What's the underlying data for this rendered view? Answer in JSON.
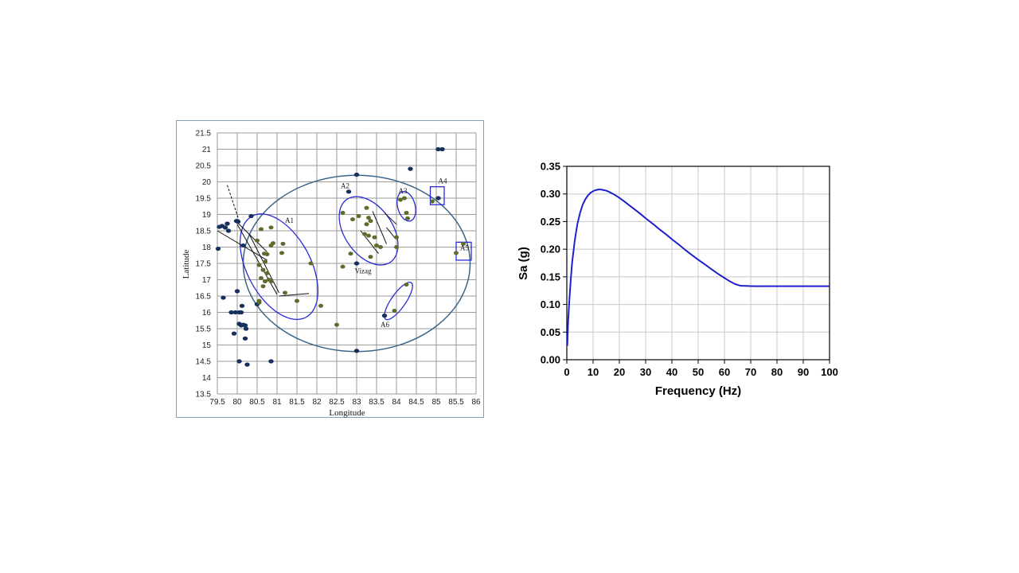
{
  "chart_data": [
    {
      "type": "scatter",
      "xlabel": "Longitude",
      "ylabel": "Latitude",
      "xlim": [
        79.5,
        86
      ],
      "ylim": [
        13.5,
        21.5
      ],
      "x_ticks": [
        "79.5",
        "80",
        "80.5",
        "81",
        "81.5",
        "82",
        "82.5",
        "83",
        "83.5",
        "84",
        "84.5",
        "85",
        "85.5",
        "86"
      ],
      "y_ticks": [
        "13.5",
        "14",
        "14.5",
        "15",
        "15.5",
        "16",
        "16.5",
        "17",
        "17.5",
        "18",
        "18.5",
        "19",
        "19.5",
        "20",
        "20.5",
        "21",
        "21.5"
      ],
      "grid": true,
      "colors": {
        "series_a": "#17305c",
        "series_b": "#5e6b2c",
        "ellipse": "#2a2ad6",
        "big_circle": "#3c6689"
      },
      "series": [
        {
          "points": [
            [
              79.52,
              17.95
            ],
            [
              79.55,
              18.62
            ],
            [
              79.62,
              18.65
            ],
            [
              79.7,
              18.6
            ],
            [
              79.75,
              18.72
            ],
            [
              79.78,
              18.5
            ],
            [
              79.98,
              18.8
            ],
            [
              80.02,
              18.78
            ],
            [
              80.35,
              18.95
            ],
            [
              80.15,
              18.05
            ],
            [
              79.85,
              16.0
            ],
            [
              79.65,
              16.45
            ],
            [
              79.95,
              16.0
            ],
            [
              80.0,
              16.65
            ],
            [
              80.05,
              16.0
            ],
            [
              80.1,
              16.0
            ],
            [
              80.12,
              16.2
            ],
            [
              80.05,
              15.65
            ],
            [
              80.1,
              15.6
            ],
            [
              80.15,
              15.62
            ],
            [
              80.2,
              15.6
            ],
            [
              80.22,
              15.5
            ],
            [
              79.92,
              15.35
            ],
            [
              80.2,
              15.2
            ],
            [
              80.05,
              14.5
            ],
            [
              80.25,
              14.4
            ],
            [
              80.85,
              14.5
            ],
            [
              80.5,
              16.25
            ],
            [
              84.35,
              20.4
            ],
            [
              85.05,
              21.0
            ],
            [
              85.15,
              21.0
            ],
            [
              85.05,
              19.5
            ],
            [
              83.0,
              20.22
            ],
            [
              83.0,
              14.82
            ],
            [
              83.0,
              17.5
            ],
            [
              82.8,
              19.7
            ],
            [
              83.7,
              15.9
            ]
          ]
        },
        {
          "points": [
            [
              80.55,
              16.35
            ],
            [
              80.65,
              16.8
            ],
            [
              80.7,
              16.95
            ],
            [
              80.75,
              17.2
            ],
            [
              80.8,
              17.0
            ],
            [
              80.85,
              16.95
            ],
            [
              80.6,
              17.05
            ],
            [
              80.65,
              17.3
            ],
            [
              80.55,
              17.45
            ],
            [
              80.7,
              17.55
            ],
            [
              80.68,
              17.8
            ],
            [
              80.75,
              17.78
            ],
            [
              80.85,
              18.05
            ],
            [
              80.9,
              18.12
            ],
            [
              81.15,
              18.1
            ],
            [
              81.12,
              17.82
            ],
            [
              81.2,
              16.6
            ],
            [
              81.5,
              16.35
            ],
            [
              80.85,
              18.6
            ],
            [
              80.6,
              18.55
            ],
            [
              80.5,
              18.2
            ],
            [
              81.85,
              17.5
            ],
            [
              82.1,
              16.2
            ],
            [
              82.5,
              15.62
            ],
            [
              82.65,
              17.4
            ],
            [
              82.65,
              19.05
            ],
            [
              82.9,
              18.85
            ],
            [
              83.05,
              18.95
            ],
            [
              82.85,
              17.8
            ],
            [
              83.25,
              19.2
            ],
            [
              83.3,
              18.9
            ],
            [
              83.25,
              18.7
            ],
            [
              83.35,
              18.8
            ],
            [
              83.2,
              18.4
            ],
            [
              83.3,
              18.35
            ],
            [
              83.45,
              18.3
            ],
            [
              83.5,
              18.05
            ],
            [
              83.6,
              18.0
            ],
            [
              83.35,
              17.7
            ],
            [
              84.0,
              18.3
            ],
            [
              84.0,
              18.0
            ],
            [
              84.1,
              19.45
            ],
            [
              84.2,
              19.5
            ],
            [
              84.25,
              19.05
            ],
            [
              84.28,
              18.88
            ],
            [
              84.25,
              16.85
            ],
            [
              83.95,
              16.05
            ],
            [
              84.9,
              19.4
            ],
            [
              85.5,
              17.82
            ],
            [
              85.68,
              18.1
            ],
            [
              80.55,
              16.3
            ]
          ]
        }
      ],
      "annotations": [
        "A1",
        "A2",
        "A3",
        "A4",
        "A5",
        "A6",
        "Vizag"
      ]
    },
    {
      "type": "line",
      "xlabel": "Frequency (Hz)",
      "ylabel": "Sa (g)",
      "xlim": [
        0,
        100
      ],
      "ylim": [
        0,
        0.35
      ],
      "x_ticks": [
        "0",
        "10",
        "20",
        "30",
        "40",
        "50",
        "60",
        "70",
        "80",
        "90",
        "100"
      ],
      "y_ticks": [
        "0.00",
        "0.05",
        "0.10",
        "0.15",
        "0.20",
        "0.25",
        "0.30",
        "0.35"
      ],
      "grid": true,
      "line_color": "#1f1fcf",
      "series": [
        {
          "x": [
            0.2,
            0.5,
            1,
            1.5,
            2,
            3,
            4,
            5,
            6,
            7,
            8,
            9,
            10,
            11,
            12,
            13,
            14,
            15,
            16,
            18,
            20,
            22,
            25,
            28,
            30,
            33,
            35,
            38,
            40,
            43,
            45,
            48,
            50,
            53,
            55,
            58,
            60,
            62,
            64,
            66,
            68,
            70,
            72,
            74,
            76,
            80,
            85,
            90,
            95,
            100
          ],
          "y": [
            0.025,
            0.07,
            0.11,
            0.145,
            0.175,
            0.215,
            0.245,
            0.265,
            0.28,
            0.29,
            0.297,
            0.302,
            0.305,
            0.307,
            0.308,
            0.308,
            0.307,
            0.306,
            0.304,
            0.299,
            0.293,
            0.286,
            0.275,
            0.264,
            0.256,
            0.245,
            0.237,
            0.226,
            0.218,
            0.207,
            0.199,
            0.188,
            0.181,
            0.171,
            0.164,
            0.154,
            0.148,
            0.142,
            0.137,
            0.134,
            0.1335,
            0.1332,
            0.1331,
            0.133,
            0.133,
            0.133,
            0.133,
            0.133,
            0.133,
            0.133
          ]
        }
      ]
    }
  ]
}
